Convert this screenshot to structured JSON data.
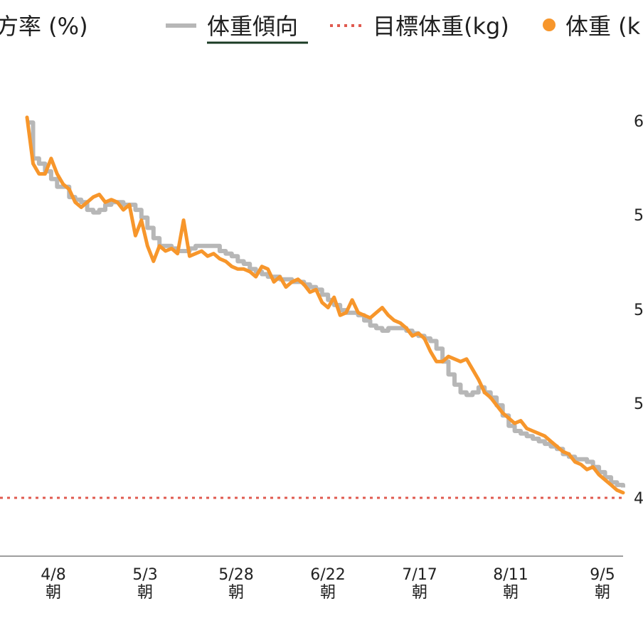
{
  "legend": {
    "partial_left_label": "方率 (%)",
    "trend_label": "体重傾向",
    "goal_label": "目標体重(kg)",
    "weight_label": "体重 (k"
  },
  "chart_data": {
    "type": "line",
    "x_ticks": [
      {
        "date": "4/8",
        "sub": "朝"
      },
      {
        "date": "5/3",
        "sub": "朝"
      },
      {
        "date": "5/28",
        "sub": "朝"
      },
      {
        "date": "6/22",
        "sub": "朝"
      },
      {
        "date": "7/17",
        "sub": "朝"
      },
      {
        "date": "8/11",
        "sub": "朝"
      },
      {
        "date": "9/5",
        "sub": "朝"
      }
    ],
    "y_tick_labels": [
      "6",
      "5",
      "5",
      "5",
      "4"
    ],
    "colors": {
      "trend": "#b7b7b7",
      "weight": "#f7962b",
      "goal": "#e05a4f",
      "axis": "#9e9e9e",
      "legend_underline": "#1b3b24"
    },
    "series": [
      {
        "name": "体重傾向",
        "style": "solid-gray",
        "points": [
          [
            0,
            7.3
          ],
          [
            1,
            6.6
          ],
          [
            2,
            6.5
          ],
          [
            3,
            6.35
          ],
          [
            4,
            6.2
          ],
          [
            5,
            6.05
          ],
          [
            6,
            6.05
          ],
          [
            7,
            5.85
          ],
          [
            8,
            5.8
          ],
          [
            9,
            5.75
          ],
          [
            10,
            5.6
          ],
          [
            11,
            5.55
          ],
          [
            12,
            5.6
          ],
          [
            13,
            5.7
          ],
          [
            14,
            5.75
          ],
          [
            15,
            5.75
          ],
          [
            16,
            5.7
          ],
          [
            17,
            5.7
          ],
          [
            18,
            5.6
          ],
          [
            19,
            5.45
          ],
          [
            20,
            5.25
          ],
          [
            21,
            5.05
          ],
          [
            22,
            4.9
          ],
          [
            23,
            4.9
          ],
          [
            24,
            4.85
          ],
          [
            25,
            4.8
          ],
          [
            26,
            4.8
          ],
          [
            27,
            4.85
          ],
          [
            28,
            4.9
          ],
          [
            29,
            4.9
          ],
          [
            30,
            4.9
          ],
          [
            31,
            4.9
          ],
          [
            32,
            4.8
          ],
          [
            33,
            4.75
          ],
          [
            34,
            4.7
          ],
          [
            35,
            4.6
          ],
          [
            36,
            4.55
          ],
          [
            37,
            4.45
          ],
          [
            38,
            4.4
          ],
          [
            39,
            4.35
          ],
          [
            40,
            4.3
          ],
          [
            41,
            4.3
          ],
          [
            42,
            4.25
          ],
          [
            43,
            4.25
          ],
          [
            44,
            4.2
          ],
          [
            45,
            4.2
          ],
          [
            46,
            4.15
          ],
          [
            47,
            4.1
          ],
          [
            48,
            4.05
          ],
          [
            49,
            3.95
          ],
          [
            50,
            3.85
          ],
          [
            51,
            3.75
          ],
          [
            52,
            3.65
          ],
          [
            53,
            3.6
          ],
          [
            54,
            3.6
          ],
          [
            55,
            3.55
          ],
          [
            56,
            3.45
          ],
          [
            57,
            3.35
          ],
          [
            58,
            3.3
          ],
          [
            59,
            3.25
          ],
          [
            60,
            3.3
          ],
          [
            61,
            3.3
          ],
          [
            62,
            3.3
          ],
          [
            63,
            3.25
          ],
          [
            64,
            3.2
          ],
          [
            65,
            3.15
          ],
          [
            66,
            3.1
          ],
          [
            67,
            3.05
          ],
          [
            68,
            2.9
          ],
          [
            69,
            2.65
          ],
          [
            70,
            2.4
          ],
          [
            71,
            2.2
          ],
          [
            72,
            2.05
          ],
          [
            73,
            2.0
          ],
          [
            74,
            2.05
          ],
          [
            75,
            2.15
          ],
          [
            76,
            2.05
          ],
          [
            77,
            1.95
          ],
          [
            78,
            1.8
          ],
          [
            79,
            1.6
          ],
          [
            80,
            1.4
          ],
          [
            81,
            1.3
          ],
          [
            82,
            1.25
          ],
          [
            83,
            1.2
          ],
          [
            84,
            1.15
          ],
          [
            85,
            1.1
          ],
          [
            86,
            1.05
          ],
          [
            87,
            1.0
          ],
          [
            88,
            0.95
          ],
          [
            89,
            0.85
          ],
          [
            90,
            0.8
          ],
          [
            91,
            0.75
          ],
          [
            92,
            0.75
          ],
          [
            93,
            0.7
          ],
          [
            94,
            0.6
          ],
          [
            95,
            0.5
          ],
          [
            96,
            0.4
          ],
          [
            97,
            0.3
          ],
          [
            98,
            0.25
          ],
          [
            99,
            0.2
          ]
        ]
      },
      {
        "name": "体重",
        "style": "solid-orange",
        "points": [
          [
            0,
            7.4
          ],
          [
            1,
            6.5
          ],
          [
            2,
            6.3
          ],
          [
            3,
            6.3
          ],
          [
            4,
            6.6
          ],
          [
            5,
            6.3
          ],
          [
            6,
            6.1
          ],
          [
            7,
            6.0
          ],
          [
            8,
            5.75
          ],
          [
            9,
            5.65
          ],
          [
            10,
            5.75
          ],
          [
            11,
            5.85
          ],
          [
            12,
            5.9
          ],
          [
            13,
            5.75
          ],
          [
            14,
            5.8
          ],
          [
            15,
            5.75
          ],
          [
            16,
            5.6
          ],
          [
            17,
            5.7
          ],
          [
            18,
            5.1
          ],
          [
            19,
            5.4
          ],
          [
            20,
            4.9
          ],
          [
            21,
            4.6
          ],
          [
            22,
            4.9
          ],
          [
            23,
            4.8
          ],
          [
            24,
            4.85
          ],
          [
            25,
            4.75
          ],
          [
            26,
            5.4
          ],
          [
            27,
            4.7
          ],
          [
            28,
            4.75
          ],
          [
            29,
            4.8
          ],
          [
            30,
            4.7
          ],
          [
            31,
            4.75
          ],
          [
            32,
            4.65
          ],
          [
            33,
            4.6
          ],
          [
            34,
            4.5
          ],
          [
            35,
            4.45
          ],
          [
            36,
            4.45
          ],
          [
            37,
            4.4
          ],
          [
            38,
            4.3
          ],
          [
            39,
            4.5
          ],
          [
            40,
            4.45
          ],
          [
            41,
            4.2
          ],
          [
            42,
            4.3
          ],
          [
            43,
            4.1
          ],
          [
            44,
            4.2
          ],
          [
            45,
            4.25
          ],
          [
            46,
            4.15
          ],
          [
            47,
            4.0
          ],
          [
            48,
            4.05
          ],
          [
            49,
            3.8
          ],
          [
            50,
            3.7
          ],
          [
            51,
            3.9
          ],
          [
            52,
            3.55
          ],
          [
            53,
            3.6
          ],
          [
            54,
            3.85
          ],
          [
            55,
            3.6
          ],
          [
            56,
            3.55
          ],
          [
            57,
            3.5
          ],
          [
            58,
            3.6
          ],
          [
            59,
            3.7
          ],
          [
            60,
            3.55
          ],
          [
            61,
            3.45
          ],
          [
            62,
            3.4
          ],
          [
            63,
            3.3
          ],
          [
            64,
            3.15
          ],
          [
            65,
            3.2
          ],
          [
            66,
            3.1
          ],
          [
            67,
            2.85
          ],
          [
            68,
            2.65
          ],
          [
            69,
            2.65
          ],
          [
            70,
            2.75
          ],
          [
            71,
            2.7
          ],
          [
            72,
            2.65
          ],
          [
            73,
            2.7
          ],
          [
            74,
            2.5
          ],
          [
            75,
            2.3
          ],
          [
            76,
            2.05
          ],
          [
            77,
            1.95
          ],
          [
            78,
            1.8
          ],
          [
            79,
            1.65
          ],
          [
            80,
            1.55
          ],
          [
            81,
            1.45
          ],
          [
            82,
            1.5
          ],
          [
            83,
            1.35
          ],
          [
            84,
            1.3
          ],
          [
            85,
            1.25
          ],
          [
            86,
            1.2
          ],
          [
            87,
            1.1
          ],
          [
            88,
            1.0
          ],
          [
            89,
            0.9
          ],
          [
            90,
            0.85
          ],
          [
            91,
            0.7
          ],
          [
            92,
            0.65
          ],
          [
            93,
            0.55
          ],
          [
            94,
            0.6
          ],
          [
            95,
            0.45
          ],
          [
            96,
            0.35
          ],
          [
            97,
            0.25
          ],
          [
            98,
            0.15
          ],
          [
            99,
            0.1
          ]
        ]
      },
      {
        "name": "目標体重(kg)",
        "style": "dotted-red",
        "value": 0.0
      }
    ]
  }
}
